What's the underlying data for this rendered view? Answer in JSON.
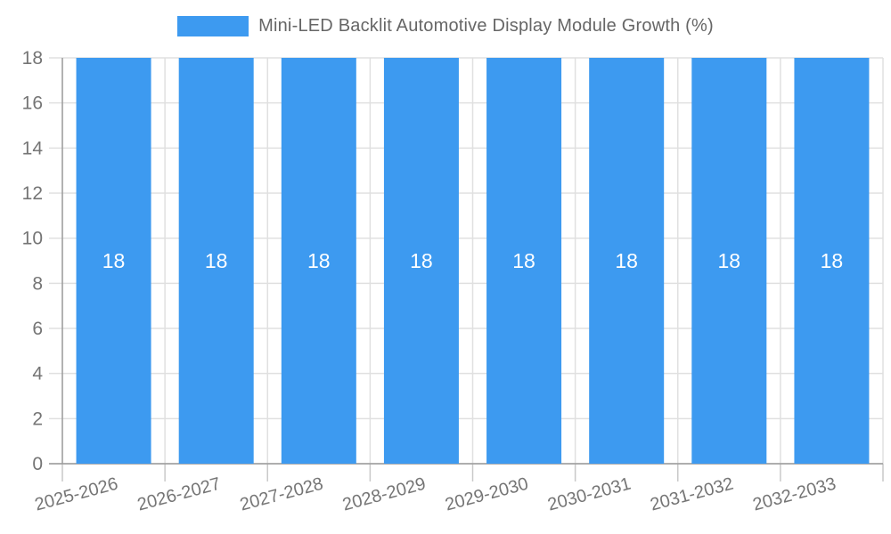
{
  "legend": {
    "label": "Mini-LED Backlit Automotive Display Module Growth (%)"
  },
  "chart_data": {
    "type": "bar",
    "title": "Mini-LED Backlit Automotive Display Module Growth (%)",
    "series_name": "Mini-LED Backlit Automotive Display Module Growth (%)",
    "categories": [
      "2025-2026",
      "2026-2027",
      "2027-2028",
      "2028-2029",
      "2029-2030",
      "2030-2031",
      "2031-2032",
      "2032-2033"
    ],
    "values": [
      18,
      18,
      18,
      18,
      18,
      18,
      18,
      18
    ],
    "value_labels": [
      "18",
      "18",
      "18",
      "18",
      "18",
      "18",
      "18",
      "18"
    ],
    "xlabel": "",
    "ylabel": "",
    "ylim": [
      0,
      18
    ],
    "yticks": [
      0,
      2,
      4,
      6,
      8,
      10,
      12,
      14,
      16,
      18
    ],
    "grid": true,
    "legend_position": "top",
    "x_label_rotation_deg": -15,
    "colors": {
      "bar": "#3D9AF0",
      "value_label": "#FFFFFF",
      "axis_label": "#757575",
      "legend_text": "#666666",
      "grid_line": "#E0E0E0",
      "axis_line": "#999999",
      "tick_line": "#C9C9C9",
      "background": "#FFFFFF"
    }
  }
}
